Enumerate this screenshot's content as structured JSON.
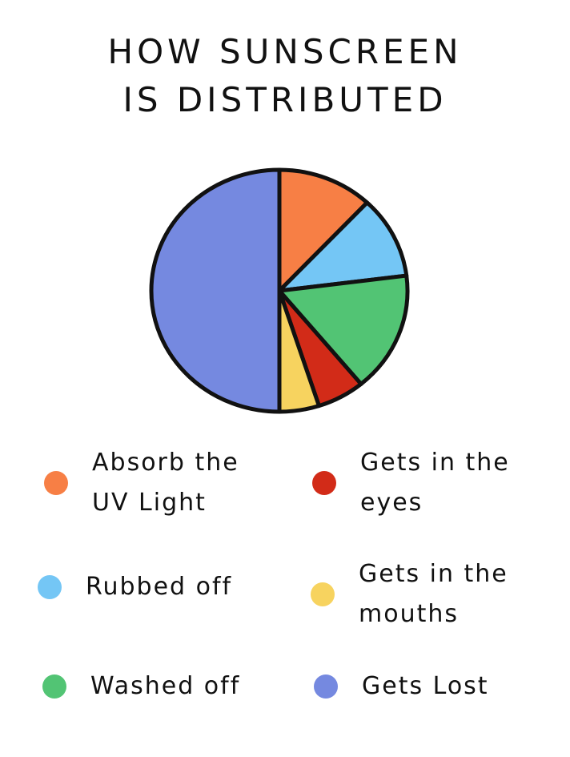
{
  "chart_data": {
    "type": "pie",
    "title_lines": [
      "HOW SUNSCREEN",
      "IS DISTRIBUTED"
    ],
    "legend_placement": "bottom",
    "slices": [
      {
        "label": "Absorb the UV Light",
        "value": 12,
        "color": "#F77F45"
      },
      {
        "label": "Rubbed off",
        "value": 11,
        "color": "#74C6F5"
      },
      {
        "label": "Washed off",
        "value": 16,
        "color": "#52C474"
      },
      {
        "label": "Gets in the eyes",
        "value": 6,
        "color": "#D22B18"
      },
      {
        "label": "Gets in the mouths",
        "value": 5,
        "color": "#F7D35F"
      },
      {
        "label": "Gets Lost",
        "value": 50,
        "color": "#7589E0"
      }
    ]
  }
}
